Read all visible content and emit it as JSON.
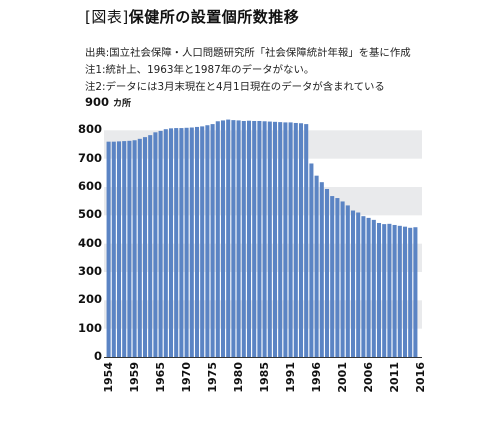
{
  "header": {
    "title_bracket": "[図表]",
    "title_main": "保健所の設置個所数推移",
    "source": "出典:国立社会保障・人口問題研究所「社会保障統計年報」を基に作成",
    "note1": "注1:統計上、1963年と1987年のデータがない。",
    "note2": "注2:データには3月末現在と4月1日現在のデータが含まれている"
  },
  "colors": {
    "bar": "#5b84c4",
    "band": "#e9eaec",
    "axis": "#333333"
  },
  "chart_data": {
    "type": "bar",
    "title": "保健所の設置個所数推移",
    "ylabel": "カ所",
    "ylim": [
      0,
      900
    ],
    "yticks": [
      "900",
      "800",
      "700",
      "600",
      "500",
      "400",
      "300",
      "200",
      "100",
      "0"
    ],
    "xtick_labels": [
      "1954",
      "1959",
      "1965",
      "1970",
      "1975",
      "1980",
      "1985",
      "1991",
      "1996",
      "2001",
      "2006",
      "2011",
      "2016"
    ],
    "values": [
      760,
      760,
      761,
      762,
      763,
      765,
      770,
      776,
      783,
      793,
      798,
      804,
      807,
      808,
      808,
      809,
      810,
      812,
      814,
      818,
      822,
      832,
      835,
      838,
      836,
      835,
      833,
      834,
      833,
      833,
      832,
      831,
      830,
      829,
      828,
      828,
      826,
      825,
      822,
      683,
      640,
      617,
      593,
      568,
      561,
      549,
      535,
      517,
      510,
      497,
      491,
      484,
      473,
      469,
      470,
      466,
      463,
      460,
      456,
      458
    ]
  }
}
